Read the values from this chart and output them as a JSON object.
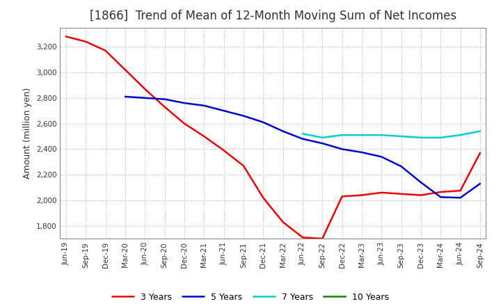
{
  "title": "[1866]  Trend of Mean of 12-Month Moving Sum of Net Incomes",
  "ylabel": "Amount (million yen)",
  "background_color": "#ffffff",
  "grid_color": "#b0b0b0",
  "ylim": [
    1700,
    3350
  ],
  "yticks": [
    1800,
    2000,
    2200,
    2400,
    2600,
    2800,
    3000,
    3200
  ],
  "x_labels": [
    "Jun-19",
    "Sep-19",
    "Dec-19",
    "Mar-20",
    "Jun-20",
    "Sep-20",
    "Dec-20",
    "Mar-21",
    "Jun-21",
    "Sep-21",
    "Dec-21",
    "Mar-22",
    "Jun-22",
    "Sep-22",
    "Dec-22",
    "Mar-23",
    "Jun-23",
    "Sep-23",
    "Dec-23",
    "Mar-24",
    "Jun-24",
    "Sep-24"
  ],
  "series": {
    "3 Years": {
      "color": "#ee0000",
      "values": [
        3280,
        3240,
        3170,
        3020,
        2870,
        2730,
        2600,
        2500,
        2390,
        2270,
        2020,
        1830,
        1710,
        1700,
        2030,
        2040,
        2060,
        2050,
        2040,
        2065,
        2075,
        2370
      ]
    },
    "5 Years": {
      "color": "#0000cc",
      "values": [
        null,
        null,
        null,
        2810,
        2800,
        2790,
        2760,
        2740,
        2700,
        2660,
        2610,
        2540,
        2480,
        2445,
        2400,
        2375,
        2340,
        2265,
        2140,
        2025,
        2020,
        2130
      ]
    },
    "7 Years": {
      "color": "#00cccc",
      "values": [
        null,
        null,
        null,
        null,
        null,
        null,
        null,
        null,
        null,
        null,
        null,
        null,
        2520,
        2490,
        2510,
        2510,
        2510,
        2500,
        2490,
        2490,
        2510,
        2540
      ]
    },
    "10 Years": {
      "color": "#008800",
      "values": [
        null,
        null,
        null,
        null,
        null,
        null,
        null,
        null,
        null,
        null,
        null,
        null,
        null,
        null,
        null,
        null,
        null,
        null,
        null,
        null,
        null,
        null
      ]
    }
  },
  "legend_order": [
    "3 Years",
    "5 Years",
    "7 Years",
    "10 Years"
  ],
  "title_fontsize": 12,
  "tick_fontsize": 7.5,
  "label_fontsize": 9,
  "legend_fontsize": 9,
  "line_width": 1.8
}
